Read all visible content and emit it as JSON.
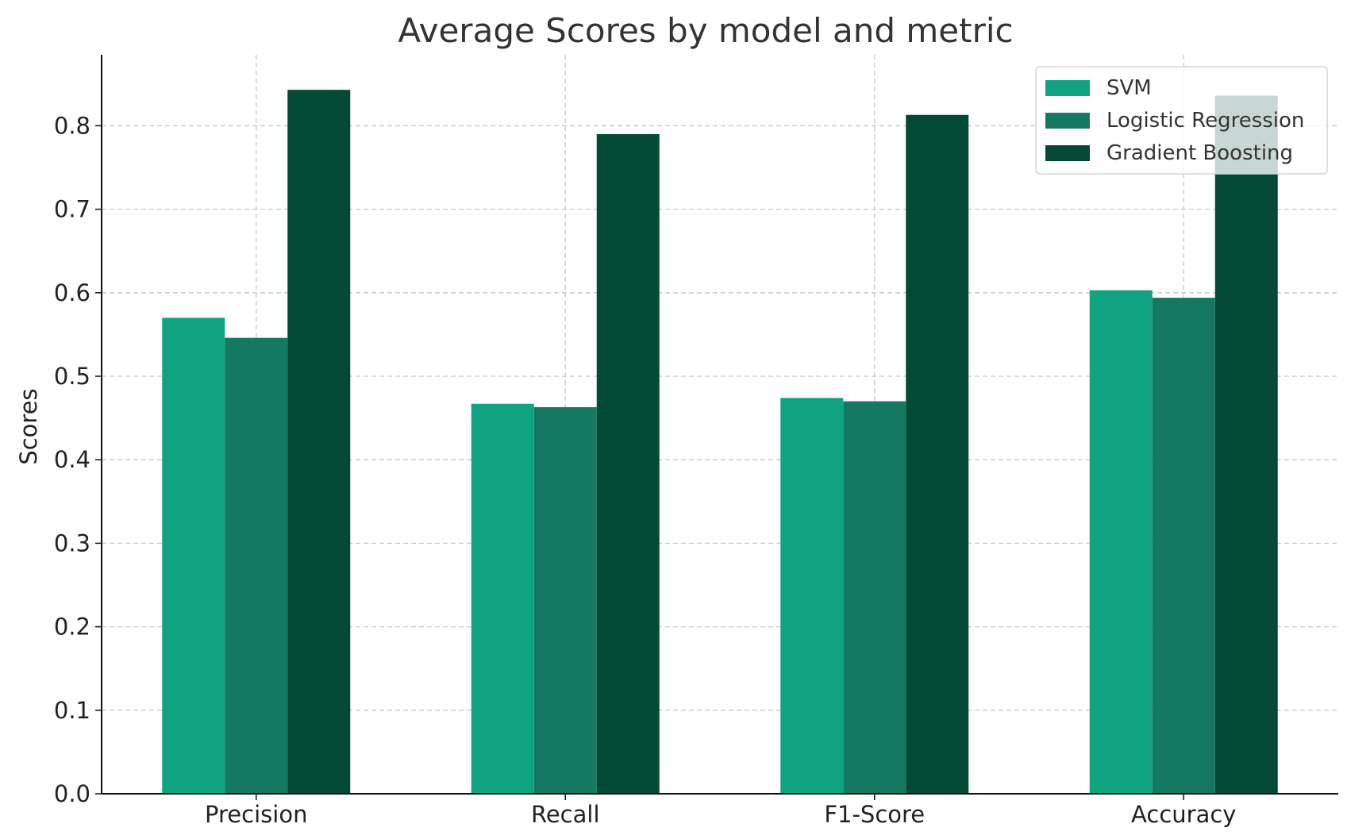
{
  "chart_data": {
    "type": "bar",
    "title": "Average Scores by model and metric",
    "xlabel": "",
    "ylabel": "Scores",
    "categories": [
      "Precision",
      "Recall",
      "F1-Score",
      "Accuracy"
    ],
    "series": [
      {
        "name": "SVM",
        "color": "#10a37f",
        "values": [
          0.57,
          0.467,
          0.474,
          0.603
        ]
      },
      {
        "name": "Logistic Regression",
        "color": "#147960",
        "values": [
          0.546,
          0.463,
          0.47,
          0.594
        ]
      },
      {
        "name": "Gradient Boosting",
        "color": "#034a36",
        "values": [
          0.843,
          0.79,
          0.813,
          0.836
        ]
      }
    ],
    "ylim": [
      0,
      0.885
    ],
    "yticks": [
      0.0,
      0.1,
      0.2,
      0.3,
      0.4,
      0.5,
      0.6,
      0.7,
      0.8
    ],
    "ytick_labels": [
      "0.0",
      "0.1",
      "0.2",
      "0.3",
      "0.4",
      "0.5",
      "0.6",
      "0.7",
      "0.8"
    ],
    "grid": true,
    "legend_position": "top-right"
  }
}
